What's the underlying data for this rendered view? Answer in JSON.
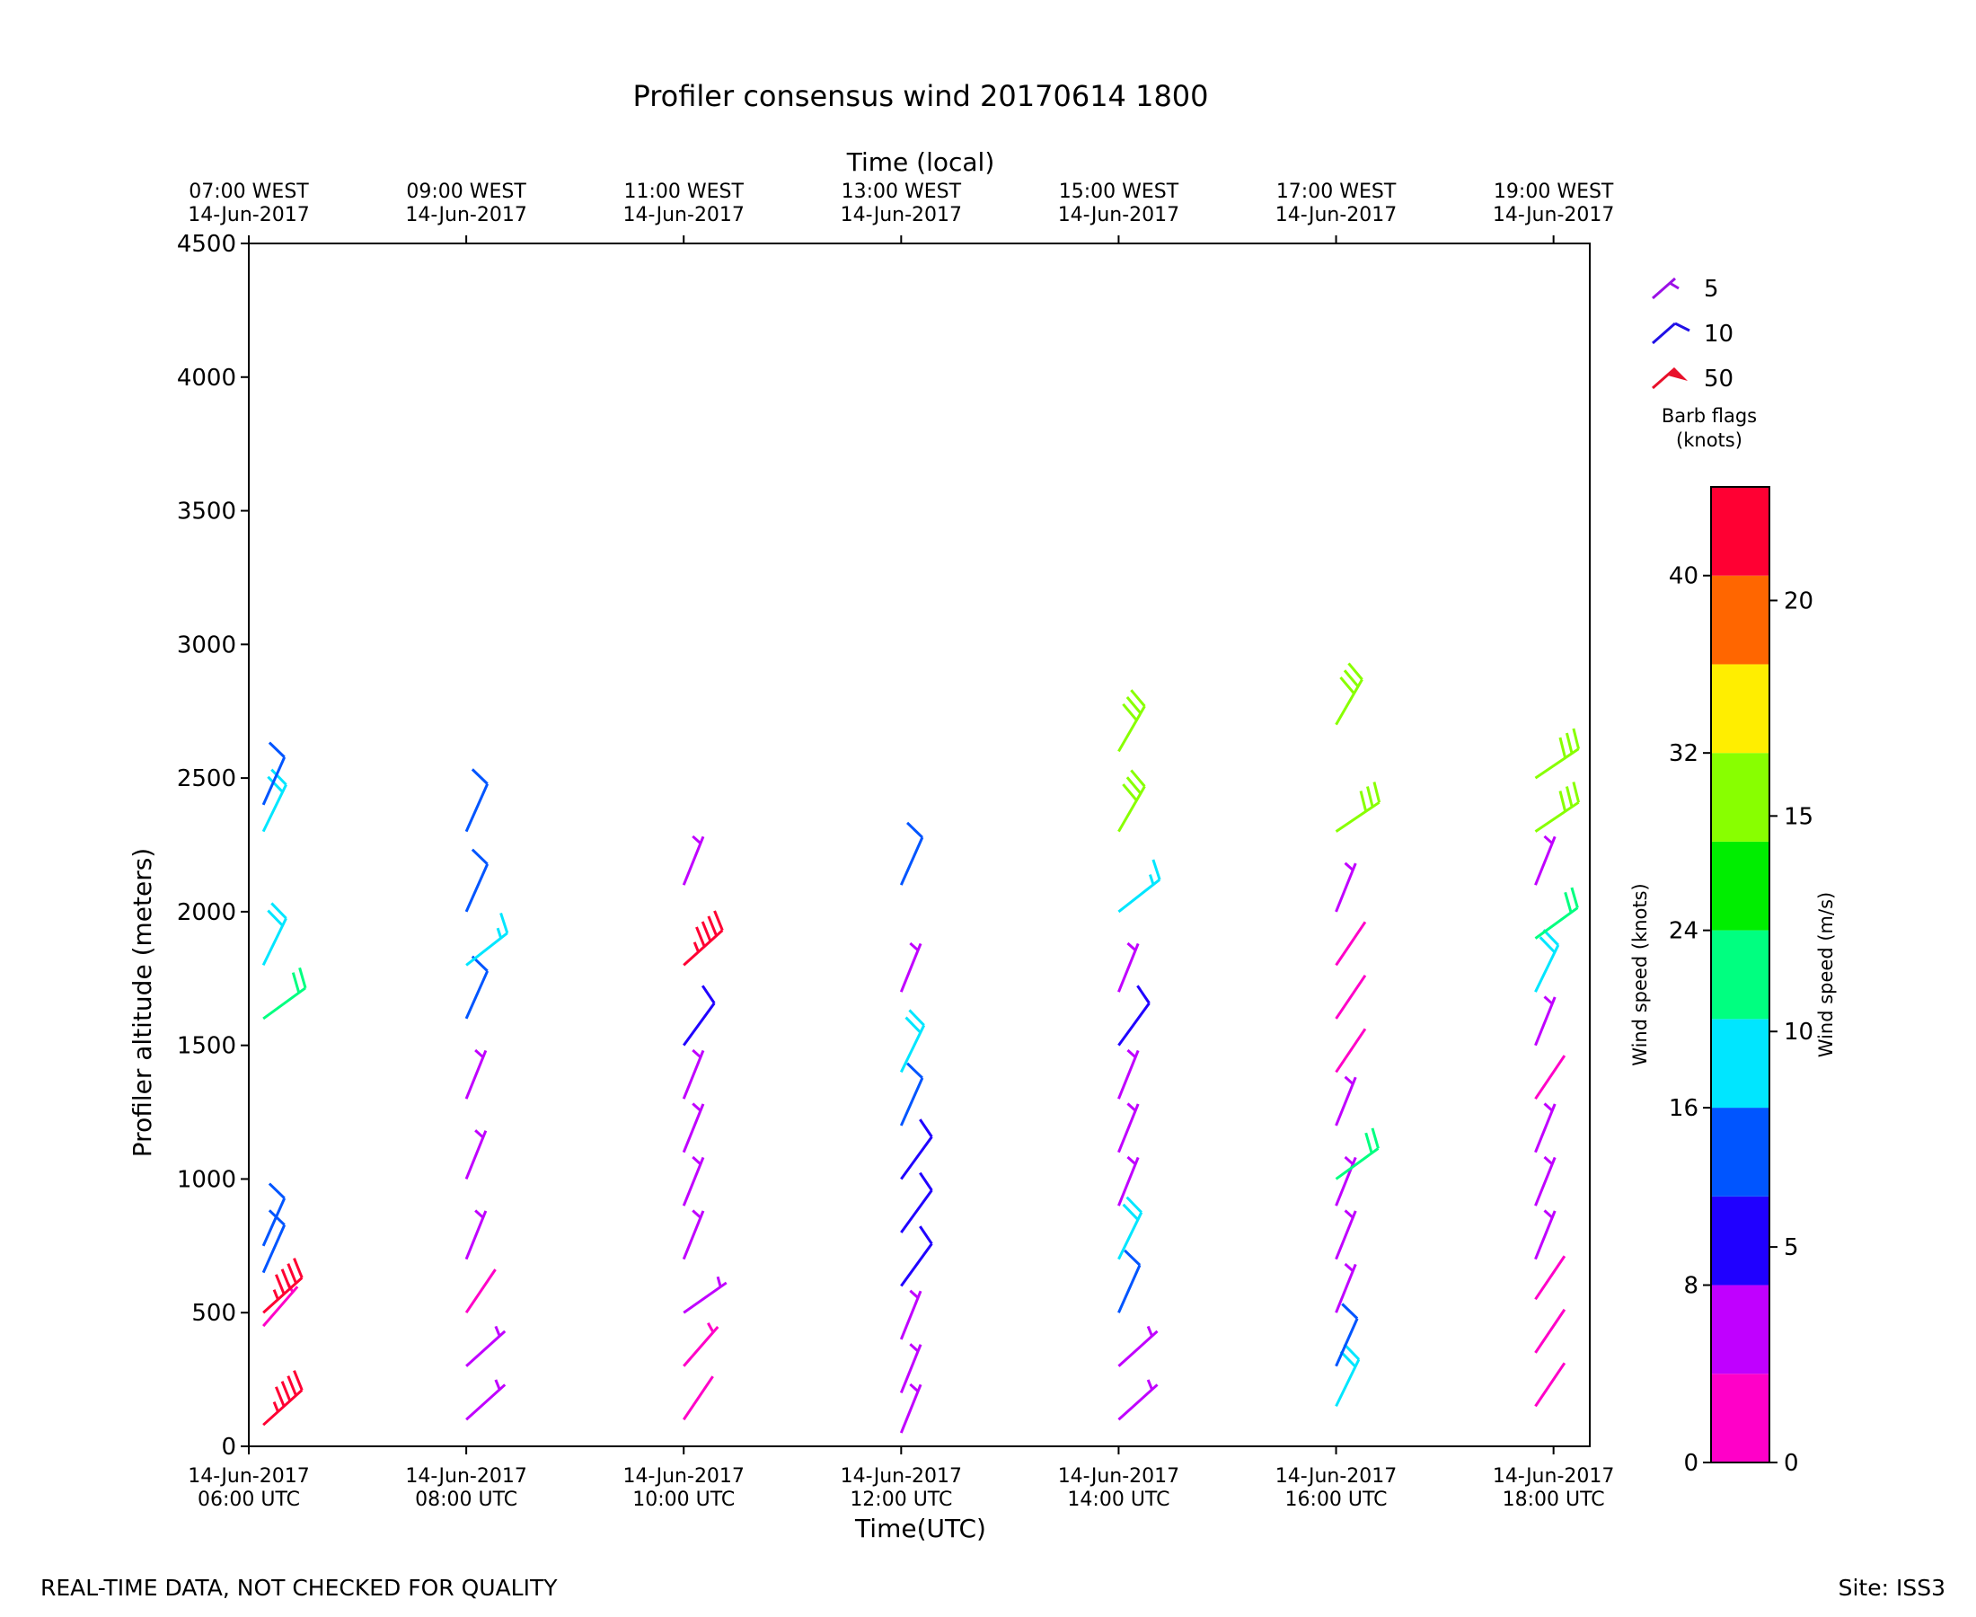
{
  "chart_data": {
    "type": "scatter",
    "marker": "wind-barb",
    "title": "Profiler consensus wind 20170614 1800",
    "xlabel": "Time(UTC)",
    "xlabel_top": "Time (local)",
    "ylabel": "Profiler altitude (meters)",
    "x_ticks_utc": [
      {
        "time": "06:00",
        "label1": "14-Jun-2017",
        "label2": "06:00 UTC"
      },
      {
        "time": "08:00",
        "label1": "14-Jun-2017",
        "label2": "08:00 UTC"
      },
      {
        "time": "10:00",
        "label1": "14-Jun-2017",
        "label2": "10:00 UTC"
      },
      {
        "time": "12:00",
        "label1": "14-Jun-2017",
        "label2": "12:00 UTC"
      },
      {
        "time": "14:00",
        "label1": "14-Jun-2017",
        "label2": "14:00 UTC"
      },
      {
        "time": "16:00",
        "label1": "14-Jun-2017",
        "label2": "16:00 UTC"
      },
      {
        "time": "18:00",
        "label1": "14-Jun-2017",
        "label2": "18:00 UTC"
      }
    ],
    "x_ticks_local": [
      {
        "time": "06:00",
        "label1": "07:00 WEST",
        "label2": "14-Jun-2017"
      },
      {
        "time": "08:00",
        "label1": "09:00 WEST",
        "label2": "14-Jun-2017"
      },
      {
        "time": "10:00",
        "label1": "11:00 WEST",
        "label2": "14-Jun-2017"
      },
      {
        "time": "12:00",
        "label1": "13:00 WEST",
        "label2": "14-Jun-2017"
      },
      {
        "time": "14:00",
        "label1": "15:00 WEST",
        "label2": "14-Jun-2017"
      },
      {
        "time": "16:00",
        "label1": "17:00 WEST",
        "label2": "14-Jun-2017"
      },
      {
        "time": "18:00",
        "label1": "19:00 WEST",
        "label2": "14-Jun-2017"
      }
    ],
    "xlim": [
      "06:00",
      "18:20"
    ],
    "ylim": [
      0,
      4500
    ],
    "y_ticks": [
      "0",
      "500",
      "1000",
      "1500",
      "2000",
      "2500",
      "3000",
      "3500",
      "4000",
      "4500"
    ],
    "legend": {
      "placement": "right",
      "title_line1": "Barb flags",
      "title_line2": "(knots)",
      "entries": [
        {
          "label": "5",
          "knots": 5,
          "color": "#9b10e6"
        },
        {
          "label": "10",
          "knots": 10,
          "color": "#2010e6"
        },
        {
          "label": "50",
          "knots": 50,
          "color": "#e8102a"
        }
      ]
    },
    "colorbar": {
      "label_left": "Wind speed (knots)",
      "label_right": "Wind speed (m/s)",
      "bins_knots": [
        0,
        4,
        8,
        12,
        16,
        20,
        24,
        28,
        32,
        36,
        40,
        44
      ],
      "colors": [
        "#ff00c8",
        "#c000ff",
        "#2000ff",
        "#0055ff",
        "#00e6ff",
        "#00ff80",
        "#00ee00",
        "#88ff00",
        "#ffee00",
        "#ff6600",
        "#ff0033"
      ],
      "left_ticks": [
        "0",
        "8",
        "16",
        "24",
        "32",
        "40"
      ],
      "right_ticks": [
        "0",
        "5",
        "10",
        "15",
        "20"
      ]
    },
    "series_summary": [
      {
        "time": "06:08",
        "altitudes_m": [
          80,
          450,
          500,
          650,
          750,
          1600,
          1800,
          2300,
          2400
        ],
        "dominant_speed_knots": [
          44,
          3,
          44,
          12,
          12,
          22,
          18,
          18,
          12
        ]
      },
      {
        "time": "08:00",
        "altitudes_m": [
          100,
          300,
          500,
          700,
          1000,
          1300,
          1600,
          1800,
          2000,
          2300
        ],
        "dominant_speed_knots": [
          4,
          4,
          2,
          6,
          6,
          6,
          12,
          16,
          12,
          12
        ]
      },
      {
        "time": "10:00",
        "altitudes_m": [
          100,
          300,
          500,
          700,
          900,
          1100,
          1300,
          1500,
          1800,
          2100
        ],
        "dominant_speed_knots": [
          2,
          3,
          5,
          6,
          6,
          6,
          6,
          8,
          44,
          6
        ]
      },
      {
        "time": "12:00",
        "altitudes_m": [
          50,
          200,
          400,
          600,
          800,
          1000,
          1200,
          1400,
          1700,
          2100
        ],
        "dominant_speed_knots": [
          6,
          6,
          6,
          8,
          8,
          8,
          12,
          18,
          6,
          12
        ]
      },
      {
        "time": "14:00",
        "altitudes_m": [
          100,
          300,
          500,
          700,
          900,
          1100,
          1300,
          1500,
          1700,
          2000,
          2300,
          2600
        ],
        "dominant_speed_knots": [
          4,
          4,
          12,
          18,
          6,
          6,
          6,
          8,
          6,
          16,
          30,
          30
        ]
      },
      {
        "time": "16:00",
        "altitudes_m": [
          150,
          300,
          500,
          700,
          900,
          1000,
          1200,
          1400,
          1600,
          1800,
          2000,
          2300,
          2700
        ],
        "dominant_speed_knots": [
          18,
          12,
          6,
          6,
          6,
          22,
          6,
          2,
          2,
          2,
          6,
          28,
          30
        ]
      },
      {
        "time": "17:50",
        "altitudes_m": [
          150,
          350,
          550,
          700,
          900,
          1100,
          1300,
          1500,
          1700,
          1900,
          2100,
          2300,
          2500
        ],
        "dominant_speed_knots": [
          2,
          2,
          2,
          6,
          6,
          6,
          2,
          6,
          18,
          22,
          6,
          28,
          28
        ]
      }
    ]
  },
  "footer": {
    "left": "REAL-TIME DATA, NOT CHECKED FOR QUALITY",
    "right": "Site: ISS3"
  }
}
